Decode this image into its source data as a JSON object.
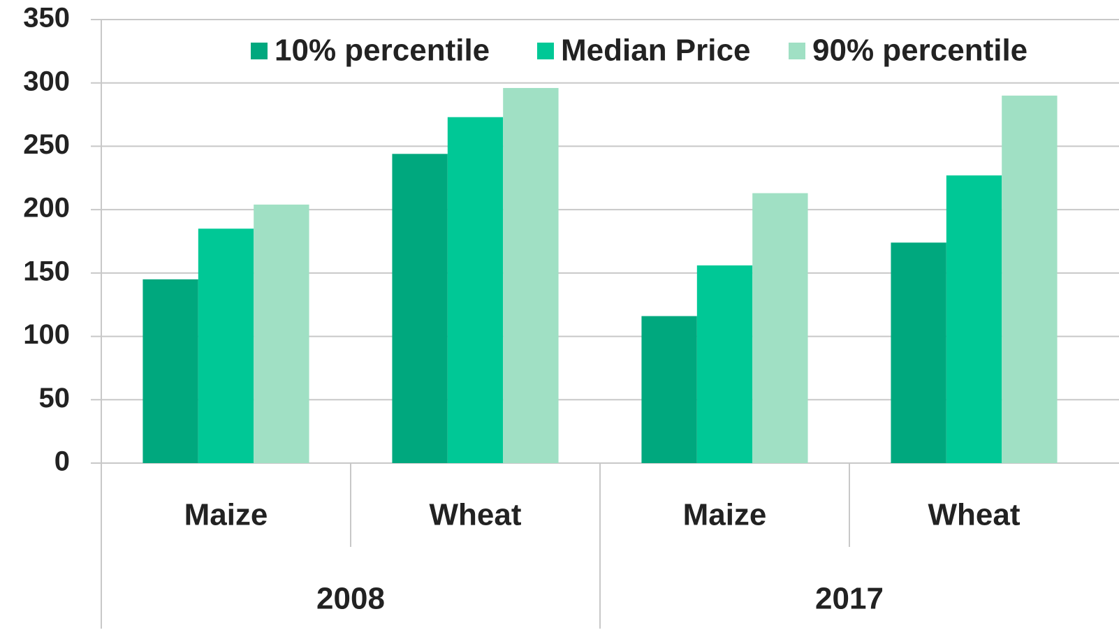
{
  "chart_data": {
    "type": "bar",
    "categories": [
      "Maize",
      "Wheat",
      "Maize",
      "Wheat"
    ],
    "groups": [
      "2008",
      "2017"
    ],
    "series": [
      {
        "name": "10% percentile",
        "color": "#00a87e",
        "values": [
          145,
          244,
          116,
          174
        ]
      },
      {
        "name": "Median Price",
        "color": "#00c896",
        "values": [
          185,
          273,
          156,
          227
        ]
      },
      {
        "name": "90% percentile",
        "color": "#a0e0c4",
        "values": [
          204,
          296,
          213,
          290
        ]
      }
    ],
    "ylim": [
      0,
      350
    ],
    "yticks": [
      0,
      50,
      100,
      150,
      200,
      250,
      300,
      350
    ],
    "grid": true,
    "legend": "top"
  }
}
